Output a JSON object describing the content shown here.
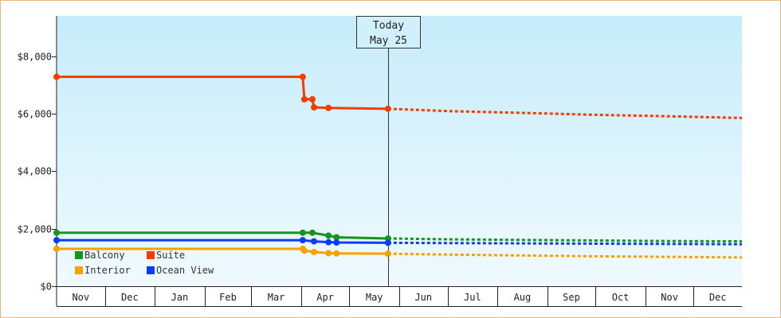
{
  "chart_data": {
    "type": "line",
    "title": "",
    "xlabel": "",
    "ylabel": "",
    "y_tick_labels": [
      "$0",
      "$2,000",
      "$4,000",
      "$6,000",
      "$8,000"
    ],
    "y_ticks": [
      0,
      2000,
      4000,
      6000,
      8000
    ],
    "ylim": [
      0,
      9400
    ],
    "x_start": "2023-11-01",
    "x_end": "2024-12-31",
    "months": [
      "Nov",
      "Dec",
      "Jan",
      "Feb",
      "Mar",
      "Apr",
      "May",
      "Jun",
      "Jul",
      "Aug",
      "Sep",
      "Oct",
      "Nov",
      "Dec"
    ],
    "today": {
      "line1": "Today",
      "line2": "May 25",
      "date": "2024-05-25"
    },
    "legend": {
      "placement": "bottom-left"
    },
    "colors": {
      "background_top": "#c6ecfa",
      "background_bottom": "#f0fafe"
    },
    "series": [
      {
        "name": "Suite",
        "color": "#f23c00",
        "historical": [
          [
            "2023-11-01",
            7280
          ],
          [
            "2024-04-02",
            7280
          ],
          [
            "2024-04-03",
            6500
          ],
          [
            "2024-04-08",
            6500
          ],
          [
            "2024-04-09",
            6220
          ],
          [
            "2024-04-18",
            6200
          ],
          [
            "2024-05-25",
            6170
          ]
        ],
        "forecast": [
          [
            "2024-05-25",
            6170
          ],
          [
            "2024-07-01",
            6090
          ],
          [
            "2024-08-15",
            6030
          ],
          [
            "2024-10-01",
            5960
          ],
          [
            "2024-11-15",
            5910
          ],
          [
            "2024-12-31",
            5850
          ]
        ]
      },
      {
        "name": "Balcony",
        "color": "#14961e",
        "historical": [
          [
            "2023-11-01",
            1860
          ],
          [
            "2024-04-02",
            1860
          ],
          [
            "2024-04-08",
            1860
          ],
          [
            "2024-04-18",
            1760
          ],
          [
            "2024-04-23",
            1700
          ],
          [
            "2024-05-25",
            1660
          ]
        ],
        "forecast": [
          [
            "2024-05-25",
            1660
          ],
          [
            "2024-07-01",
            1630
          ],
          [
            "2024-08-15",
            1610
          ],
          [
            "2024-10-01",
            1590
          ],
          [
            "2024-11-15",
            1570
          ],
          [
            "2024-12-31",
            1560
          ]
        ]
      },
      {
        "name": "Ocean View",
        "color": "#0a3cf5",
        "historical": [
          [
            "2023-11-01",
            1600
          ],
          [
            "2024-04-02",
            1600
          ],
          [
            "2024-04-09",
            1560
          ],
          [
            "2024-04-18",
            1530
          ],
          [
            "2024-04-23",
            1520
          ],
          [
            "2024-05-25",
            1510
          ]
        ],
        "forecast": [
          [
            "2024-05-25",
            1510
          ],
          [
            "2024-07-01",
            1500
          ],
          [
            "2024-08-15",
            1490
          ],
          [
            "2024-10-01",
            1480
          ],
          [
            "2024-11-15",
            1470
          ],
          [
            "2024-12-31",
            1460
          ]
        ]
      },
      {
        "name": "Interior",
        "color": "#f7a000",
        "historical": [
          [
            "2023-11-01",
            1300
          ],
          [
            "2024-04-02",
            1300
          ],
          [
            "2024-04-03",
            1240
          ],
          [
            "2024-04-09",
            1190
          ],
          [
            "2024-04-18",
            1150
          ],
          [
            "2024-04-23",
            1140
          ],
          [
            "2024-05-25",
            1130
          ]
        ],
        "forecast": [
          [
            "2024-05-25",
            1130
          ],
          [
            "2024-07-01",
            1100
          ],
          [
            "2024-08-15",
            1070
          ],
          [
            "2024-10-01",
            1040
          ],
          [
            "2024-11-15",
            1020
          ],
          [
            "2024-12-31",
            1000
          ]
        ]
      }
    ],
    "legend_items": [
      {
        "name": "Balcony",
        "color": "#14961e"
      },
      {
        "name": "Suite",
        "color": "#f23c00"
      },
      {
        "name": "Interior",
        "color": "#f7a000"
      },
      {
        "name": "Ocean View",
        "color": "#0a3cf5"
      }
    ]
  }
}
